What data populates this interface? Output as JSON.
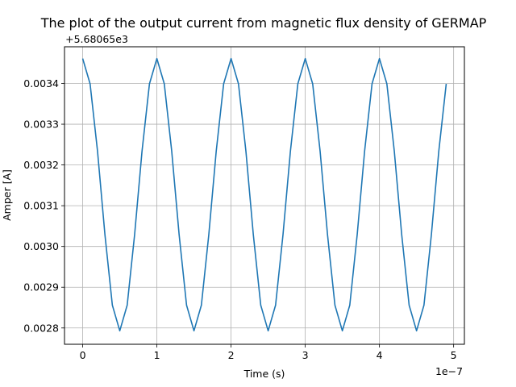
{
  "chart_data": {
    "type": "line",
    "title": "The plot of the output current from magnetic flux density of GERMAP",
    "xlabel": "Time (s)",
    "ylabel": "Amper [A]",
    "x_offset_label": "1e−7",
    "y_offset_label": "+5.68065e3",
    "x_scale": 1e-07,
    "y_offset": 5680.65,
    "xlim": [
      -0.245,
      5.145
    ],
    "ylim": [
      0.00276,
      0.00349
    ],
    "x_ticks": [
      0,
      1,
      2,
      3,
      4,
      5
    ],
    "x_tick_labels": [
      "0",
      "1",
      "2",
      "3",
      "4",
      "5"
    ],
    "y_ticks": [
      0.0028,
      0.0029,
      0.003,
      0.0031,
      0.0032,
      0.0033,
      0.0034
    ],
    "y_tick_labels": [
      "0.0028",
      "0.0029",
      "0.0030",
      "0.0031",
      "0.0032",
      "0.0033",
      "0.0034"
    ],
    "grid": true,
    "series": [
      {
        "color": "#1f77b4",
        "x": [
          0,
          0.1,
          0.2,
          0.3,
          0.4,
          0.5,
          0.6,
          0.7,
          0.8,
          0.9,
          1.0,
          1.1,
          1.2,
          1.3,
          1.4,
          1.5,
          1.6,
          1.7,
          1.8,
          1.9,
          2.0,
          2.1,
          2.2,
          2.3,
          2.4,
          2.5,
          2.6,
          2.7,
          2.8,
          2.9,
          3.0,
          3.1,
          3.2,
          3.3,
          3.4,
          3.5,
          3.6,
          3.7,
          3.8,
          3.9,
          4.0,
          4.1,
          4.2,
          4.3,
          4.4,
          4.5,
          4.6,
          4.7,
          4.8,
          4.9
        ],
        "y": [
          0.003461,
          0.003399,
          0.003234,
          0.003029,
          0.002856,
          0.002793,
          0.002856,
          0.003029,
          0.003234,
          0.003399,
          0.003461,
          0.003399,
          0.003234,
          0.003029,
          0.002856,
          0.002793,
          0.002856,
          0.003029,
          0.003234,
          0.003399,
          0.003461,
          0.003399,
          0.003234,
          0.003029,
          0.002856,
          0.002793,
          0.002856,
          0.003029,
          0.003234,
          0.003399,
          0.003461,
          0.003399,
          0.003234,
          0.003029,
          0.002856,
          0.002793,
          0.002856,
          0.003029,
          0.003234,
          0.003399,
          0.003461,
          0.003399,
          0.003234,
          0.003029,
          0.002856,
          0.002793,
          0.002856,
          0.003029,
          0.003234,
          0.003399
        ]
      }
    ]
  }
}
